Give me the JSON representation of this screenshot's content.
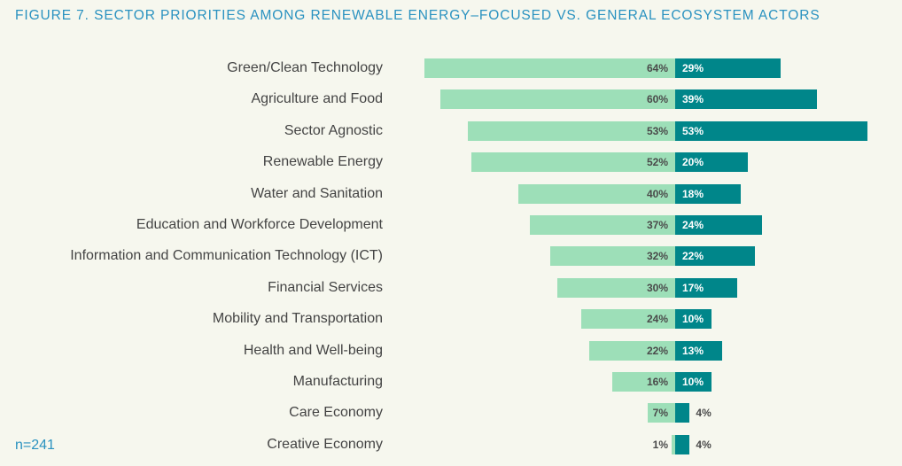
{
  "chart_data": {
    "type": "bar",
    "orientation": "horizontal-diverging",
    "title": "FIGURE 7. SECTOR PRIORITIES AMONG RENEWABLE ENERGY–FOCUSED VS. GENERAL ECOSYSTEM ACTORS",
    "note": "n=241",
    "categories": [
      "Green/Clean Technology",
      "Agriculture and Food",
      "Sector Agnostic",
      "Renewable Energy",
      "Water and Sanitation",
      "Education and Workforce Development",
      "Information and Communication Technology (ICT)",
      "Financial Services",
      "Mobility and Transportation",
      "Health and Well-being",
      "Manufacturing",
      "Care Economy",
      "Creative Economy"
    ],
    "series": [
      {
        "name": "Left series",
        "color": "#9ddfb8",
        "values": [
          64,
          60,
          53,
          52,
          40,
          37,
          32,
          30,
          24,
          22,
          16,
          7,
          1
        ]
      },
      {
        "name": "Right series",
        "color": "#00868a",
        "values": [
          29,
          39,
          53,
          20,
          18,
          24,
          22,
          17,
          10,
          13,
          10,
          4,
          4
        ]
      }
    ],
    "unit": "%"
  }
}
